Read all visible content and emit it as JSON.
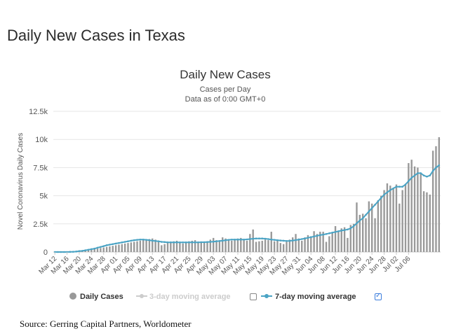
{
  "page": {
    "heading": "Daily New Cases in Texas",
    "source": "Source: Gerring Capital Partners, Worldometer"
  },
  "legend": {
    "items": [
      {
        "label": "Daily Cases",
        "enabled": true
      },
      {
        "label": "3-day moving average",
        "enabled": false
      },
      {
        "label": "7-day moving average",
        "enabled": true
      }
    ]
  },
  "colors": {
    "bars": "#999999",
    "ma7": "#4aa3c4",
    "ma3_disabled": "#cccccc",
    "grid": "#e6e6e6"
  },
  "chart_data": {
    "type": "bar",
    "title": "Daily New Cases",
    "subtitle_lines": [
      "Cases per Day",
      "Data as of 0:00 GMT+0"
    ],
    "ylabel": "Novel Coronavirus Daily Cases",
    "xlabel": "",
    "ylim": [
      0,
      12500
    ],
    "yticks": [
      0,
      2500,
      5000,
      7500,
      10000,
      12500
    ],
    "ytick_labels": [
      "0",
      "2.5k",
      "5k",
      "7.5k",
      "10k",
      "12.5k"
    ],
    "x_tick_labels": [
      "Mar 12",
      "Mar 16",
      "Mar 20",
      "Mar 24",
      "Mar 28",
      "Apr 01",
      "Apr 05",
      "Apr 09",
      "Apr 13",
      "Apr 17",
      "Apr 21",
      "Apr 25",
      "Apr 29",
      "May 03",
      "May 07",
      "May 11",
      "May 15",
      "May 19",
      "May 23",
      "May 27",
      "May 31",
      "Jun 04",
      "Jun 08",
      "Jun 12",
      "Jun 16",
      "Jun 20",
      "Jun 24",
      "Jun 28",
      "Jul 02",
      "Jul 06"
    ],
    "x_tick_every_days": 4,
    "start_label": "Mar 12",
    "grid": true,
    "legend_position": "bottom",
    "series": [
      {
        "name": "Daily Cases",
        "kind": "bar",
        "values": [
          0,
          0,
          0,
          5,
          10,
          20,
          30,
          40,
          60,
          80,
          100,
          150,
          200,
          250,
          300,
          350,
          400,
          450,
          500,
          550,
          600,
          650,
          700,
          750,
          800,
          850,
          900,
          950,
          1000,
          1050,
          1100,
          1150,
          1200,
          1100,
          950,
          600,
          700,
          800,
          900,
          950,
          1000,
          850,
          750,
          900,
          950,
          1000,
          1050,
          900,
          850,
          900,
          950,
          1100,
          1250,
          1050,
          950,
          1300,
          1200,
          1100,
          1000,
          1150,
          1200,
          1250,
          1100,
          1000,
          1600,
          2000,
          900,
          950,
          1000,
          1100,
          1050,
          1800,
          950,
          1000,
          800,
          700,
          900,
          1100,
          1300,
          1600,
          1200,
          1000,
          1300,
          1500,
          1400,
          1850,
          1600,
          1800,
          1800,
          900,
          1400,
          1700,
          2300,
          1900,
          2100,
          2200,
          1250,
          2400,
          2500,
          4400,
          3300,
          3400,
          3000,
          4500,
          4300,
          3000,
          4600,
          5000,
          5500,
          6100,
          5900,
          5600,
          6000,
          4300,
          5500,
          6000,
          7900,
          8200,
          7600,
          7500,
          7000,
          5400,
          5300,
          5100,
          9000,
          9400,
          10200
        ]
      },
      {
        "name": "7-day moving average",
        "kind": "line",
        "values": [
          0,
          0,
          0,
          0,
          0,
          10,
          20,
          40,
          80,
          100,
          150,
          200,
          250,
          300,
          380,
          450,
          520,
          600,
          650,
          700,
          750,
          800,
          850,
          900,
          950,
          1000,
          1050,
          1080,
          1100,
          1100,
          1080,
          1050,
          1000,
          980,
          950,
          900,
          880,
          860,
          860,
          860,
          860,
          850,
          850,
          850,
          860,
          860,
          860,
          860,
          870,
          870,
          880,
          900,
          920,
          950,
          980,
          1000,
          1050,
          1080,
          1100,
          1100,
          1100,
          1100,
          1100,
          1120,
          1150,
          1180,
          1200,
          1200,
          1200,
          1180,
          1150,
          1100,
          1080,
          1050,
          1020,
          1000,
          980,
          990,
          1020,
          1060,
          1100,
          1150,
          1200,
          1260,
          1320,
          1380,
          1440,
          1500,
          1550,
          1600,
          1660,
          1720,
          1780,
          1840,
          1900,
          1950,
          2000,
          2100,
          2300,
          2550,
          2800,
          3000,
          3300,
          3600,
          3900,
          4200,
          4500,
          4800,
          5100,
          5300,
          5500,
          5650,
          5800,
          5800,
          5800,
          6000,
          6300,
          6600,
          6800,
          7000,
          7000,
          6800,
          6700,
          6800,
          7200,
          7500,
          7700
        ]
      }
    ]
  }
}
